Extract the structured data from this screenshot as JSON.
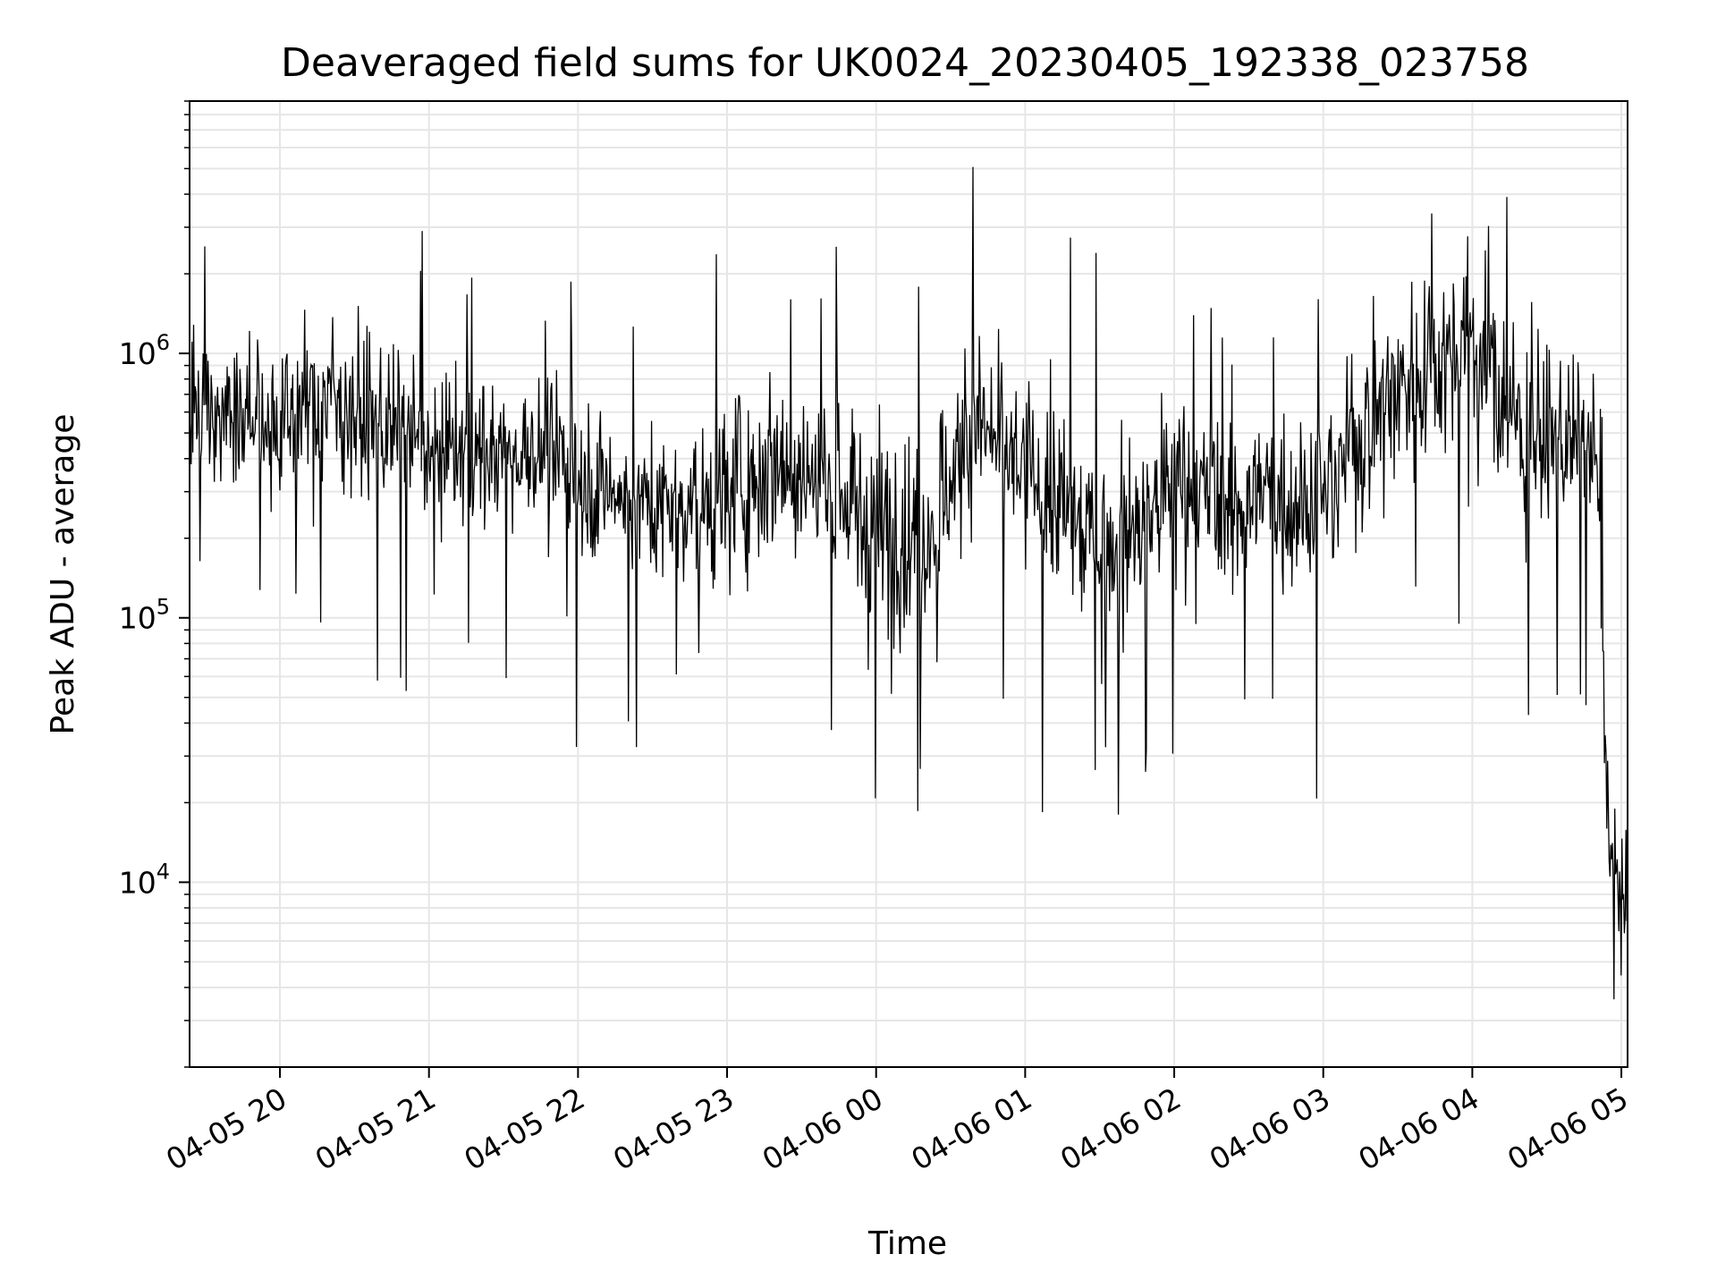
{
  "chart_data": {
    "type": "line",
    "title": "Deaveraged field sums for UK0024_20230405_192338_023758",
    "xlabel": "Time",
    "ylabel": "Peak ADU - average",
    "y_scale": "log",
    "ylim": [
      2000,
      9000000
    ],
    "xlim": [
      "2023-04-05 19:23:38",
      "2023-04-06 05:02:30"
    ],
    "grid": true,
    "line_color": "#000000",
    "grid_color": "#e6e6e6",
    "x_ticks": [
      {
        "value": "2023-04-05 20:00",
        "label": "04-05 20"
      },
      {
        "value": "2023-04-05 21:00",
        "label": "04-05 21"
      },
      {
        "value": "2023-04-05 22:00",
        "label": "04-05 22"
      },
      {
        "value": "2023-04-05 23:00",
        "label": "04-05 23"
      },
      {
        "value": "2023-04-06 00:00",
        "label": "04-06 00"
      },
      {
        "value": "2023-04-06 01:00",
        "label": "04-06 01"
      },
      {
        "value": "2023-04-06 02:00",
        "label": "04-06 02"
      },
      {
        "value": "2023-04-06 03:00",
        "label": "04-06 03"
      },
      {
        "value": "2023-04-06 04:00",
        "label": "04-06 04"
      },
      {
        "value": "2023-04-06 05:00",
        "label": "04-06 05"
      }
    ],
    "y_ticks": [
      {
        "value": 10000,
        "base": "10",
        "exp": "4"
      },
      {
        "value": 100000,
        "base": "10",
        "exp": "5"
      },
      {
        "value": 1000000,
        "base": "10",
        "exp": "6"
      }
    ],
    "envelope": {
      "x": [
        "2023-04-05 19:23:38",
        "2023-04-05 19:40",
        "2023-04-05 20:00",
        "2023-04-05 20:20",
        "2023-04-05 20:40",
        "2023-04-05 21:00",
        "2023-04-05 21:20",
        "2023-04-05 21:40",
        "2023-04-05 22:00",
        "2023-04-05 22:20",
        "2023-04-05 22:40",
        "2023-04-05 23:00",
        "2023-04-05 23:20",
        "2023-04-05 23:40",
        "2023-04-06 00:00",
        "2023-04-06 00:20",
        "2023-04-06 00:40",
        "2023-04-06 01:00",
        "2023-04-06 01:20",
        "2023-04-06 01:40",
        "2023-04-06 02:00",
        "2023-04-06 02:20",
        "2023-04-06 02:40",
        "2023-04-06 03:00",
        "2023-04-06 03:20",
        "2023-04-06 03:40",
        "2023-04-06 04:00",
        "2023-04-06 04:20",
        "2023-04-06 04:40",
        "2023-04-06 04:50",
        "2023-04-06 04:55",
        "2023-04-06 05:00",
        "2023-04-06 05:02"
      ],
      "y_typical": [
        650000,
        600000,
        550000,
        700000,
        520000,
        450000,
        420000,
        430000,
        350000,
        280000,
        260000,
        300000,
        400000,
        320000,
        220000,
        200000,
        550000,
        350000,
        230000,
        180000,
        330000,
        260000,
        300000,
        280000,
        600000,
        900000,
        1100000,
        500000,
        450000,
        400000,
        15000,
        9000,
        9000
      ],
      "y_spread_decades": [
        0.35,
        0.35,
        0.4,
        0.4,
        0.4,
        0.35,
        0.35,
        0.35,
        0.4,
        0.35,
        0.35,
        0.45,
        0.45,
        0.45,
        0.5,
        0.45,
        0.45,
        0.45,
        0.45,
        0.45,
        0.5,
        0.45,
        0.45,
        0.45,
        0.5,
        0.5,
        0.45,
        0.4,
        0.4,
        0.35,
        0.35,
        0.3,
        0.3
      ]
    }
  }
}
